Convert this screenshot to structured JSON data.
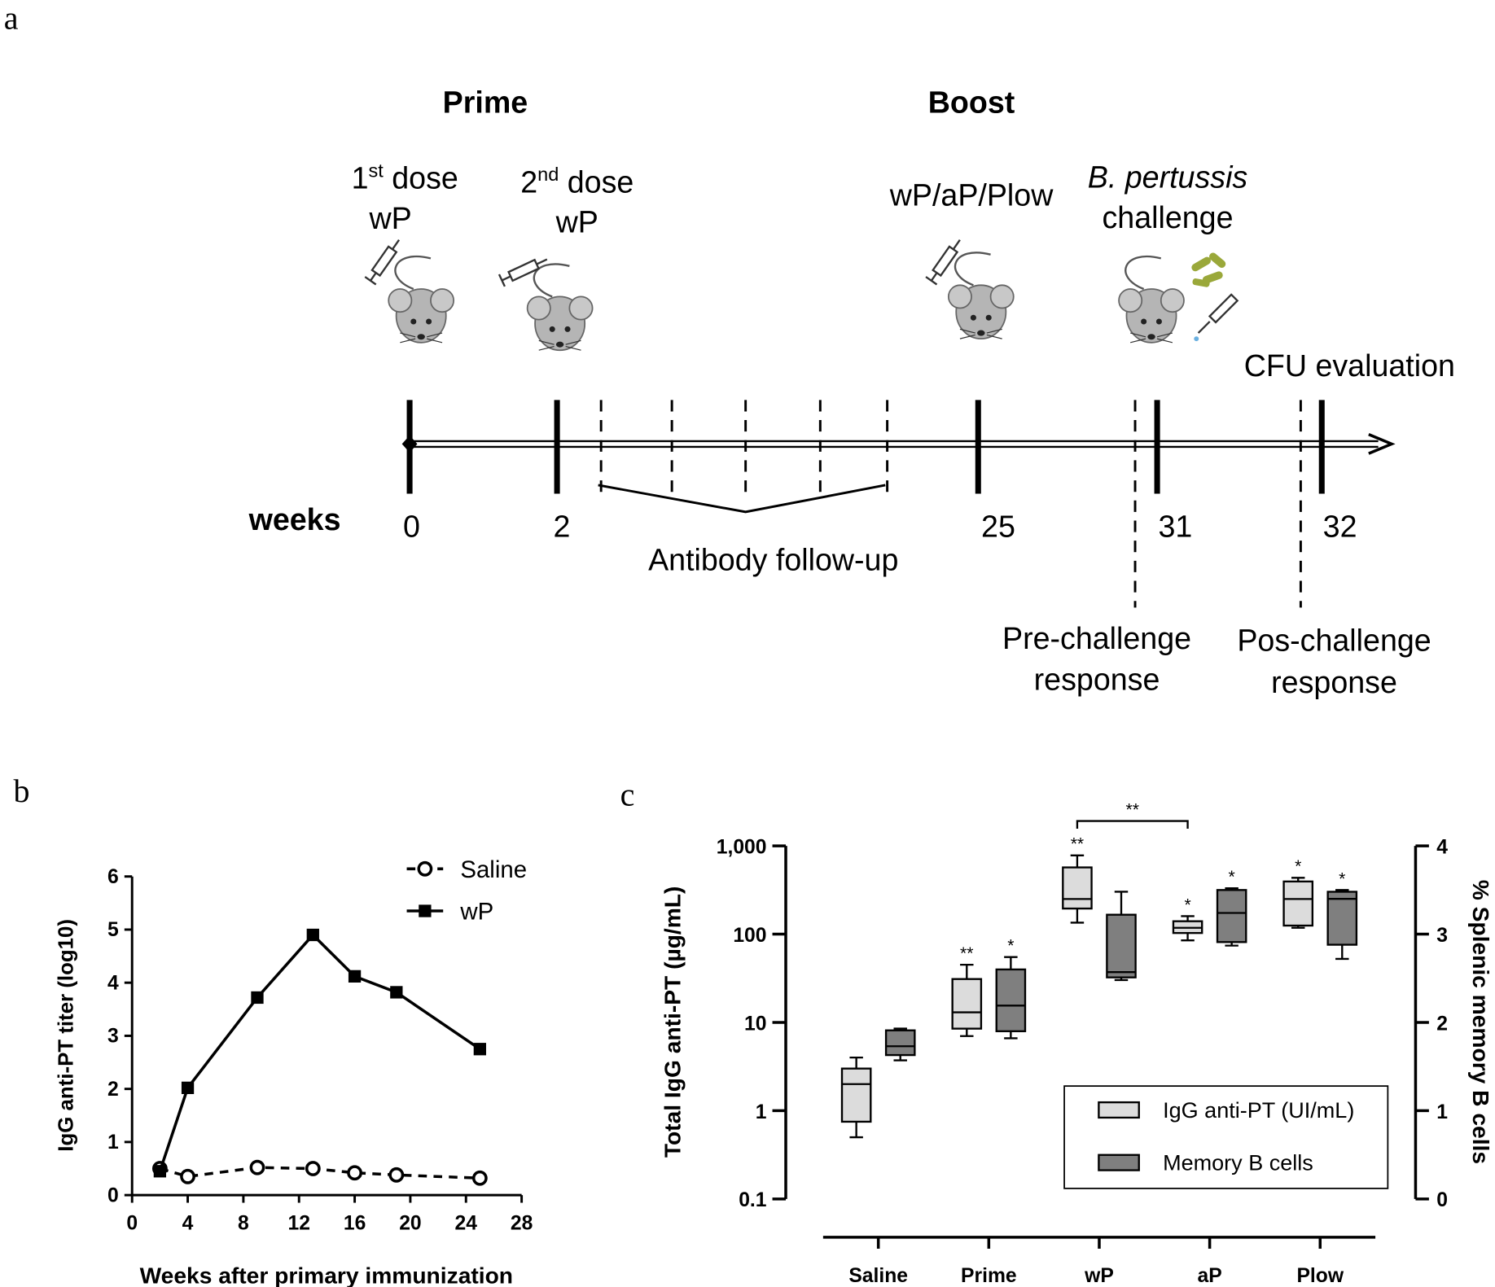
{
  "panel_labels": [
    "a",
    "b",
    "c"
  ],
  "diagram": {
    "phases": [
      "Prime",
      "Boost"
    ],
    "doses": [
      {
        "ordinal": "1",
        "suffix": "st",
        "text": " dose",
        "vaccine": "wP"
      },
      {
        "ordinal": "2",
        "suffix": "nd",
        "text": " dose",
        "vaccine": "wP"
      }
    ],
    "boost": "wP/aP/Plow",
    "challenge": {
      "organism": "B. pertussis",
      "text": "challenge"
    },
    "cfu": "CFU evaluation",
    "axis_label": "weeks",
    "weeks": [
      "0",
      "2",
      "25",
      "31",
      "32"
    ],
    "follow_up": "Antibody follow-up",
    "responses": [
      [
        "Pre-challenge",
        "response"
      ],
      [
        "Pos-challenge",
        "response"
      ]
    ]
  },
  "chart_data": [
    {
      "type": "line",
      "xlabel": "Weeks after primary immunization",
      "ylabel": "IgG anti-PT titer (log10)",
      "x": [
        2,
        4,
        9,
        13,
        16,
        19,
        25
      ],
      "series": [
        {
          "name": "Saline",
          "color": "#000000",
          "line_style": "dashed",
          "marker": "circle-open",
          "values": [
            0.5,
            0.35,
            0.52,
            0.5,
            0.42,
            0.38,
            0.32
          ]
        },
        {
          "name": "wP",
          "color": "#000000",
          "line_style": "solid",
          "marker": "square",
          "values": [
            0.45,
            2.02,
            3.72,
            4.9,
            4.12,
            3.82,
            2.75
          ]
        }
      ],
      "xlim": [
        0,
        28
      ],
      "xticks": [
        0,
        4,
        8,
        12,
        16,
        20,
        24,
        28
      ],
      "ylim": [
        0,
        6
      ],
      "yticks": [
        0,
        1,
        2,
        3,
        4,
        5,
        6
      ],
      "legend": "upper right"
    },
    {
      "type": "box",
      "ylabel": "Total IgG anti-PT (µg/mL)",
      "y2label": "% Splenic memory B cells",
      "categories": [
        "Saline",
        "Prime",
        "wP",
        "aP",
        "Plow"
      ],
      "series": [
        {
          "name": "IgG anti-PT (UI/mL)",
          "color": "#dcdcdc",
          "axis": "y",
          "values": [
            {
              "min": 0.5,
              "q1": 0.75,
              "median": 2,
              "q3": 3,
              "max": 4
            },
            {
              "min": 7,
              "q1": 8.5,
              "median": 13,
              "q3": 31,
              "max": 45
            },
            {
              "min": 135,
              "q1": 195,
              "median": 250,
              "q3": 570,
              "max": 780
            },
            {
              "min": 85,
              "q1": 103,
              "median": 118,
              "q3": 140,
              "max": 160
            },
            {
              "min": 118,
              "q1": 125,
              "median": 250,
              "q3": 395,
              "max": 435
            }
          ],
          "significance": [
            null,
            "**",
            "**",
            "*",
            "*"
          ]
        },
        {
          "name": "Memory B cells",
          "color": "#7f7f7f",
          "axis": "y2",
          "values": [
            {
              "min": 1.57,
              "q1": 1.63,
              "median": 1.73,
              "q3": 1.91,
              "max": 1.93
            },
            {
              "min": 1.82,
              "q1": 1.9,
              "median": 2.19,
              "q3": 2.6,
              "max": 2.74
            },
            {
              "min": 2.48,
              "q1": 2.51,
              "median": 2.57,
              "q3": 3.22,
              "max": 3.48
            },
            {
              "min": 2.87,
              "q1": 2.91,
              "median": 3.24,
              "q3": 3.5,
              "max": 3.52
            },
            {
              "min": 2.72,
              "q1": 2.88,
              "median": 3.4,
              "q3": 3.48,
              "max": 3.5
            }
          ],
          "significance": [
            null,
            "*",
            null,
            "*",
            "*"
          ]
        }
      ],
      "comparisons": [
        {
          "between": [
            "wP",
            "aP"
          ],
          "label": "**"
        }
      ],
      "yscale": "log",
      "ylim": [
        0.1,
        1000
      ],
      "yticks": [
        0.1,
        1,
        10,
        100,
        {
          "value": 1000,
          "label": "1,000"
        }
      ],
      "y2lim": [
        0,
        4
      ],
      "y2ticks": [
        0,
        1,
        2,
        3,
        4
      ],
      "legend": "lower right"
    }
  ]
}
